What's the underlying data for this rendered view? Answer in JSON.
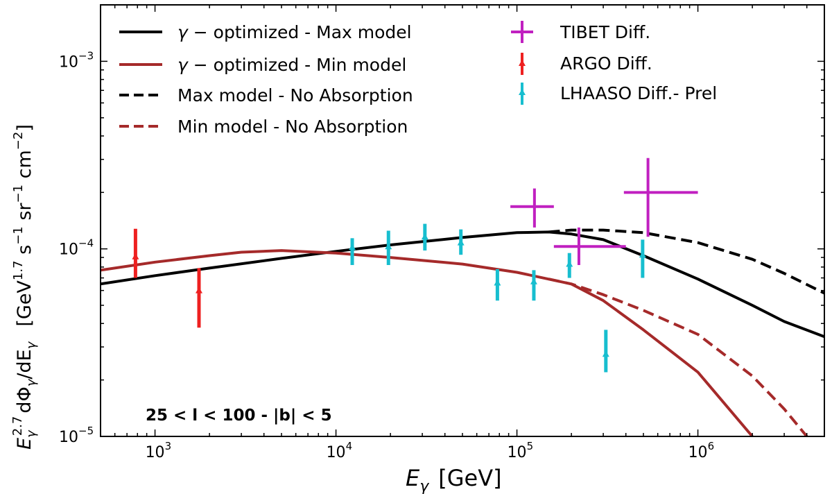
{
  "chart_data": {
    "type": "line",
    "x_scale": "log",
    "y_scale": "log",
    "xlim": [
      500,
      5000000
    ],
    "ylim": [
      1e-05,
      0.002
    ],
    "xlabel": {
      "main": "E",
      "sub": "γ",
      "unit": "[GeV]"
    },
    "ylabel": {
      "e": "E",
      "e_sub": "γ",
      "e_sup": "2.7",
      "deriv": "dΦ",
      "deriv_sub": "γ",
      "slash": "/dE",
      "slash_sub": "γ",
      "units": {
        "open": "[GeV",
        "s1": "1.7",
        "mid1": " s",
        "s2": "−1",
        "mid2": " sr",
        "s3": "−1",
        "mid3": " cm",
        "s4": "−2",
        "close": "]"
      }
    },
    "x_ticks": [
      {
        "value": 1000,
        "base": "10",
        "exp": "3"
      },
      {
        "value": 10000,
        "base": "10",
        "exp": "4"
      },
      {
        "value": 100000,
        "base": "10",
        "exp": "5"
      },
      {
        "value": 1000000,
        "base": "10",
        "exp": "6"
      }
    ],
    "y_ticks": [
      {
        "value": 1e-05,
        "base": "10",
        "exp": "−5"
      },
      {
        "value": 0.0001,
        "base": "10",
        "exp": "−4"
      },
      {
        "value": 0.001,
        "base": "10",
        "exp": "−3"
      }
    ],
    "annotation": "25  <  l  <  100 - |b| < 5",
    "colors": {
      "max": "#000000",
      "min": "#a52a2a",
      "tibet": "#c020c0",
      "argo": "#ee2020",
      "lhaaso": "#17becf"
    },
    "series": [
      {
        "name": "γ −  optimized - Max model",
        "name_main": "γ −",
        "name_rest": "  optimized - Max model",
        "color": "#000000",
        "dash": "solid",
        "x": [
          500,
          1000,
          2000,
          5000,
          10000,
          20000,
          50000,
          100000,
          150000,
          200000,
          300000,
          500000,
          1000000,
          2000000,
          3000000,
          5000000
        ],
        "y": [
          6.5e-05,
          7.2e-05,
          7.9e-05,
          8.9e-05,
          9.7e-05,
          0.000105,
          0.000115,
          0.000122,
          0.000123,
          0.00012,
          0.000112,
          9.2e-05,
          6.9e-05,
          5e-05,
          4.1e-05,
          3.4e-05
        ]
      },
      {
        "name": "γ −  optimized - Min model",
        "name_main": "γ −",
        "name_rest": "  optimized - Min model",
        "color": "#a52a2a",
        "dash": "solid",
        "x": [
          500,
          1000,
          2000,
          3000,
          5000,
          10000,
          20000,
          50000,
          100000,
          200000,
          300000,
          500000,
          1000000,
          2000000
        ],
        "y": [
          7.7e-05,
          8.5e-05,
          9.2e-05,
          9.6e-05,
          9.8e-05,
          9.5e-05,
          9e-05,
          8.3e-05,
          7.5e-05,
          6.5e-05,
          5.3e-05,
          3.7e-05,
          2.2e-05,
          1e-05
        ]
      },
      {
        "name": "Max model - No Absorption",
        "name_main": "",
        "name_rest": "Max model - No Absorption",
        "color": "#000000",
        "dash": "dashed",
        "x": [
          150000,
          200000,
          300000,
          500000,
          1000000,
          2000000,
          3000000,
          5000000
        ],
        "y": [
          0.000123,
          0.000126,
          0.000126,
          0.000122,
          0.000108,
          8.8e-05,
          7.4e-05,
          5.8e-05
        ]
      },
      {
        "name": "Min model - No Absorption",
        "name_main": "",
        "name_rest": "Min model - No Absorption",
        "color": "#a52a2a",
        "dash": "dashed",
        "x": [
          150000,
          200000,
          300000,
          500000,
          1000000,
          2000000,
          3000000,
          4000000
        ],
        "y": [
          6.9e-05,
          6.5e-05,
          5.7e-05,
          4.7e-05,
          3.5e-05,
          2.1e-05,
          1.4e-05,
          1e-05
        ]
      }
    ],
    "points": [
      {
        "name": "TIBET Diff.",
        "color": "#c020c0",
        "marker": "plus",
        "data": [
          {
            "x": 125000,
            "y": 0.000168,
            "xlo": 92000,
            "xhi": 160000,
            "ylo": 0.00013,
            "yhi": 0.00021
          },
          {
            "x": 220000,
            "y": 0.000103,
            "xlo": 160000,
            "xhi": 400000,
            "ylo": 8.2e-05,
            "yhi": 0.00013
          },
          {
            "x": 530000,
            "y": 0.0002,
            "xlo": 390000,
            "xhi": 1000000,
            "ylo": 0.000116,
            "yhi": 0.000305
          }
        ]
      },
      {
        "name": "ARGO Diff.",
        "color": "#ee2020",
        "marker": "triangle",
        "data": [
          {
            "x": 780,
            "y": 9.1e-05,
            "ylo": 7e-05,
            "yhi": 0.000128
          },
          {
            "x": 1750,
            "y": 6e-05,
            "ylo": 3.8e-05,
            "yhi": 7.9e-05
          }
        ]
      },
      {
        "name": "LHAASO Diff.- Prel",
        "color": "#17becf",
        "marker": "triangle",
        "data": [
          {
            "x": 12300,
            "y": 0.000102,
            "ylo": 8.2e-05,
            "yhi": 0.000114
          },
          {
            "x": 19500,
            "y": 0.000103,
            "ylo": 8.2e-05,
            "yhi": 0.000125
          },
          {
            "x": 31000,
            "y": 0.000116,
            "ylo": 9.8e-05,
            "yhi": 0.000136
          },
          {
            "x": 49000,
            "y": 0.000108,
            "ylo": 9.3e-05,
            "yhi": 0.000127
          },
          {
            "x": 78000,
            "y": 6.6e-05,
            "ylo": 5.3e-05,
            "yhi": 7.8e-05
          },
          {
            "x": 124000,
            "y": 6.7e-05,
            "ylo": 5.3e-05,
            "yhi": 7.7e-05
          },
          {
            "x": 195000,
            "y": 8.3e-05,
            "ylo": 7e-05,
            "yhi": 9.5e-05
          },
          {
            "x": 310000,
            "y": 2.75e-05,
            "ylo": 2.2e-05,
            "yhi": 3.7e-05
          },
          {
            "x": 495000,
            "y": 9.3e-05,
            "ylo": 7e-05,
            "yhi": 0.000112
          }
        ]
      }
    ]
  }
}
